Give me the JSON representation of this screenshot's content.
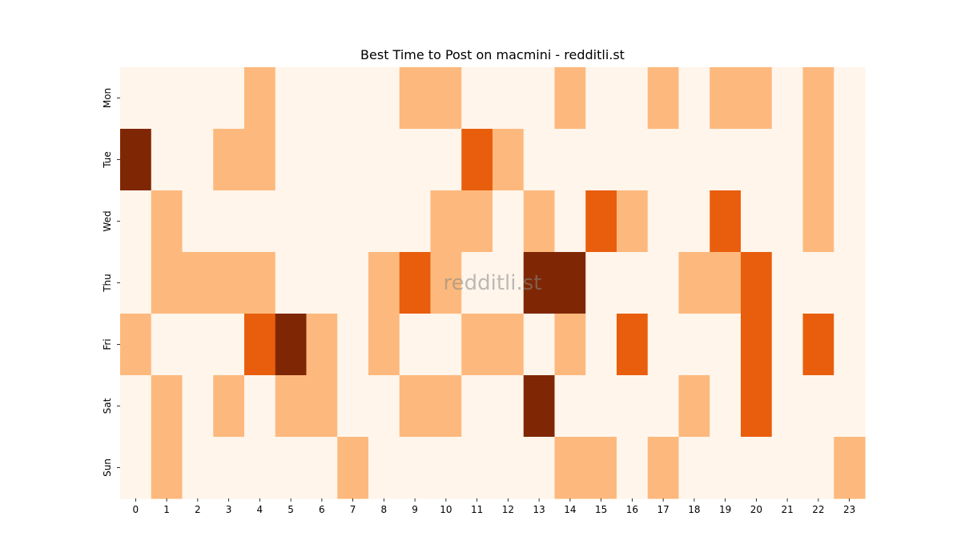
{
  "chart_data": {
    "type": "heatmap",
    "title": "Best Time to Post on macmini - redditli.st",
    "watermark": "redditli.st",
    "x_categories": [
      "0",
      "1",
      "2",
      "3",
      "4",
      "5",
      "6",
      "7",
      "8",
      "9",
      "10",
      "11",
      "12",
      "13",
      "14",
      "15",
      "16",
      "17",
      "18",
      "19",
      "20",
      "21",
      "22",
      "23"
    ],
    "y_categories": [
      "Mon",
      "Tue",
      "Wed",
      "Thu",
      "Fri",
      "Sat",
      "Sun"
    ],
    "values": [
      [
        0,
        0,
        0,
        0,
        1,
        0,
        0,
        0,
        0,
        1,
        1,
        0,
        0,
        0,
        1,
        0,
        0,
        1,
        0,
        1,
        1,
        0,
        1,
        0
      ],
      [
        3,
        0,
        0,
        1,
        1,
        0,
        0,
        0,
        0,
        0,
        0,
        2,
        1,
        0,
        0,
        0,
        0,
        0,
        0,
        0,
        0,
        0,
        1,
        0
      ],
      [
        0,
        1,
        0,
        0,
        0,
        0,
        0,
        0,
        0,
        0,
        1,
        1,
        0,
        1,
        0,
        2,
        1,
        0,
        0,
        2,
        0,
        0,
        1,
        0
      ],
      [
        0,
        1,
        1,
        1,
        1,
        0,
        0,
        0,
        1,
        2,
        1,
        0,
        0,
        3,
        3,
        0,
        0,
        0,
        1,
        1,
        2,
        0,
        0,
        0
      ],
      [
        1,
        0,
        0,
        0,
        2,
        3,
        1,
        0,
        1,
        0,
        0,
        1,
        1,
        0,
        1,
        0,
        2,
        0,
        0,
        0,
        2,
        0,
        2,
        0
      ],
      [
        0,
        1,
        0,
        1,
        0,
        1,
        1,
        0,
        0,
        1,
        1,
        0,
        0,
        3,
        0,
        0,
        0,
        0,
        1,
        0,
        2,
        0,
        0,
        0
      ],
      [
        0,
        1,
        0,
        0,
        0,
        0,
        0,
        1,
        0,
        0,
        0,
        0,
        0,
        0,
        1,
        1,
        0,
        1,
        0,
        0,
        0,
        0,
        0,
        1
      ]
    ],
    "color_scale": [
      "#fff5eb",
      "#fdb97d",
      "#e95e0d",
      "#7f2704"
    ],
    "colormap": "Oranges",
    "grid": false,
    "legend": "none"
  }
}
